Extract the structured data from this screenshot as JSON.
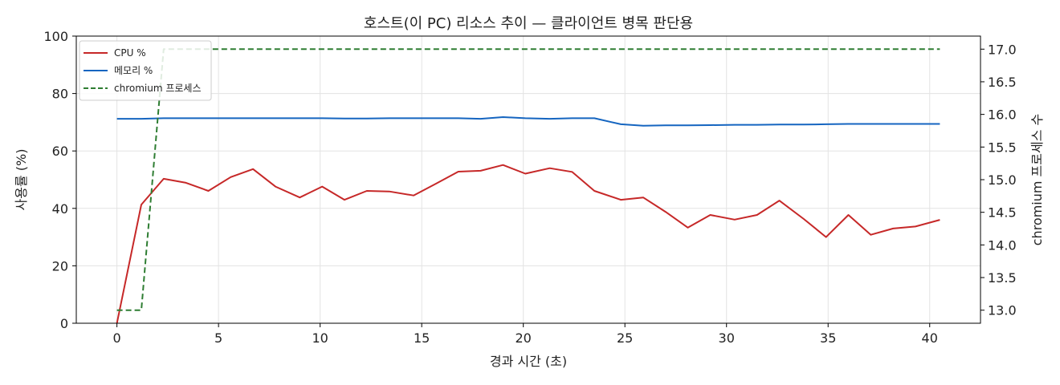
{
  "chart_data": {
    "type": "line",
    "title": "호스트(이 PC) 리소스 추이 — 클라이언트 병목 판단용",
    "xlabel": "경과 시간 (초)",
    "ylabel": "사용률 (%)",
    "y2label": "chromium 프로세스 수",
    "xlim": [
      -2,
      42.5
    ],
    "ylim": [
      0,
      100
    ],
    "y2lim": [
      12.8,
      17.2
    ],
    "xticks": [
      "0",
      "5",
      "10",
      "15",
      "20",
      "25",
      "30",
      "35",
      "40"
    ],
    "yticks": [
      "0",
      "20",
      "40",
      "60",
      "80",
      "100"
    ],
    "y2ticks": [
      "13.0",
      "13.5",
      "14.0",
      "14.5",
      "15.0",
      "15.5",
      "16.0",
      "16.5",
      "17.0"
    ],
    "grid": true,
    "legend_position": "top-left",
    "series": [
      {
        "name": "CPU %",
        "axis": "left",
        "color": "#c62828",
        "style": "solid",
        "x": [
          0,
          1.2,
          2.3,
          3.4,
          4.5,
          5.6,
          6.7,
          7.8,
          9.0,
          10.1,
          11.2,
          12.3,
          13.4,
          14.6,
          15.7,
          16.8,
          17.9,
          19.0,
          20.1,
          21.3,
          22.4,
          23.5,
          24.8,
          25.9,
          27.0,
          28.1,
          29.2,
          30.4,
          31.5,
          32.6,
          33.8,
          34.9,
          36.0,
          37.1,
          38.2,
          39.3,
          40.5
        ],
        "values": [
          0,
          41.3,
          50.3,
          48.9,
          46.1,
          50.9,
          53.7,
          47.6,
          43.8,
          47.6,
          43.0,
          46.1,
          45.9,
          44.5,
          48.6,
          52.8,
          53.1,
          55.1,
          52.1,
          54.0,
          52.7,
          46.1,
          43.0,
          43.8,
          38.8,
          33.3,
          37.7,
          36.1,
          37.7,
          42.7,
          36.3,
          30.0,
          37.7,
          30.8,
          33.0,
          33.7,
          36.0
        ]
      },
      {
        "name": "메모리 %",
        "axis": "left",
        "color": "#1565c0",
        "style": "solid",
        "x": [
          0,
          1.2,
          2.3,
          3.4,
          4.5,
          5.6,
          6.7,
          7.8,
          9.0,
          10.1,
          11.2,
          12.3,
          13.4,
          14.6,
          15.7,
          16.8,
          17.9,
          19.0,
          20.1,
          21.3,
          22.4,
          23.5,
          24.8,
          25.9,
          27.0,
          28.1,
          29.2,
          30.4,
          31.5,
          32.6,
          33.8,
          34.9,
          36.0,
          37.1,
          38.2,
          39.3,
          40.5
        ],
        "values": [
          71.2,
          71.2,
          71.4,
          71.4,
          71.4,
          71.4,
          71.4,
          71.4,
          71.4,
          71.4,
          71.3,
          71.3,
          71.4,
          71.4,
          71.4,
          71.4,
          71.2,
          71.8,
          71.4,
          71.2,
          71.4,
          71.4,
          69.3,
          68.8,
          68.9,
          68.9,
          69.0,
          69.1,
          69.1,
          69.2,
          69.2,
          69.3,
          69.4,
          69.4,
          69.4,
          69.4,
          69.4
        ]
      },
      {
        "name": "chromium 프로세스",
        "axis": "right",
        "color": "#2e7d32",
        "style": "dashed",
        "x": [
          0,
          1.2,
          2.3,
          3.4,
          4.5,
          5.6,
          6.7,
          7.8,
          9.0,
          10.1,
          11.2,
          12.3,
          13.4,
          14.6,
          15.7,
          16.8,
          17.9,
          19.0,
          20.1,
          21.3,
          22.4,
          23.5,
          24.8,
          25.9,
          27.0,
          28.1,
          29.2,
          30.4,
          31.5,
          32.6,
          33.8,
          34.9,
          36.0,
          37.1,
          38.2,
          39.3,
          40.5
        ],
        "values": [
          13,
          13,
          17,
          17,
          17,
          17,
          17,
          17,
          17,
          17,
          17,
          17,
          17,
          17,
          17,
          17,
          17,
          17,
          17,
          17,
          17,
          17,
          17,
          17,
          17,
          17,
          17,
          17,
          17,
          17,
          17,
          17,
          17,
          17,
          17,
          17,
          17
        ]
      }
    ]
  }
}
